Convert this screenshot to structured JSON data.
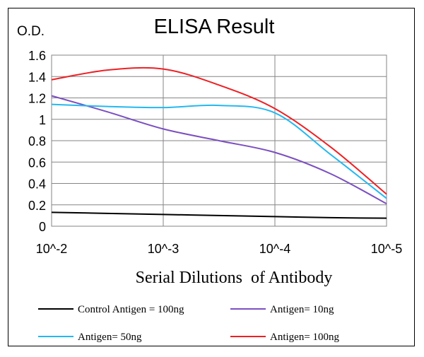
{
  "chart_data": {
    "type": "line",
    "title": "ELISA Result",
    "ylabel": "O.D.",
    "xlabel": "Serial Dilutions  of Antibody",
    "x_ticks": [
      "10^-2",
      "10^-3",
      "10^-4",
      "10^-5"
    ],
    "y_ticks": [
      "0",
      "0.2",
      "0.4",
      "0.6",
      "0.8",
      "1",
      "1.2",
      "1.4",
      "1.6"
    ],
    "ylim": [
      0,
      1.6
    ],
    "grid": "on",
    "legend_position": "bottom",
    "x": [
      -2,
      -2.5,
      -3,
      -3.5,
      -4,
      -4.5,
      -5
    ],
    "series": [
      {
        "name": "Control Antigen = 100ng",
        "color": "#000000",
        "values": [
          0.13,
          0.12,
          0.11,
          0.1,
          0.09,
          0.08,
          0.075
        ]
      },
      {
        "name": "Antigen= 10ng",
        "color": "#7b4fc0",
        "values": [
          1.22,
          1.07,
          0.91,
          0.8,
          0.69,
          0.49,
          0.21
        ]
      },
      {
        "name": "Antigen= 50ng",
        "color": "#25b8f0",
        "values": [
          1.14,
          1.12,
          1.11,
          1.13,
          1.06,
          0.67,
          0.26
        ]
      },
      {
        "name": "Antigen= 100ng",
        "color": "#ee2024",
        "values": [
          1.37,
          1.46,
          1.47,
          1.32,
          1.1,
          0.74,
          0.3
        ]
      }
    ]
  }
}
